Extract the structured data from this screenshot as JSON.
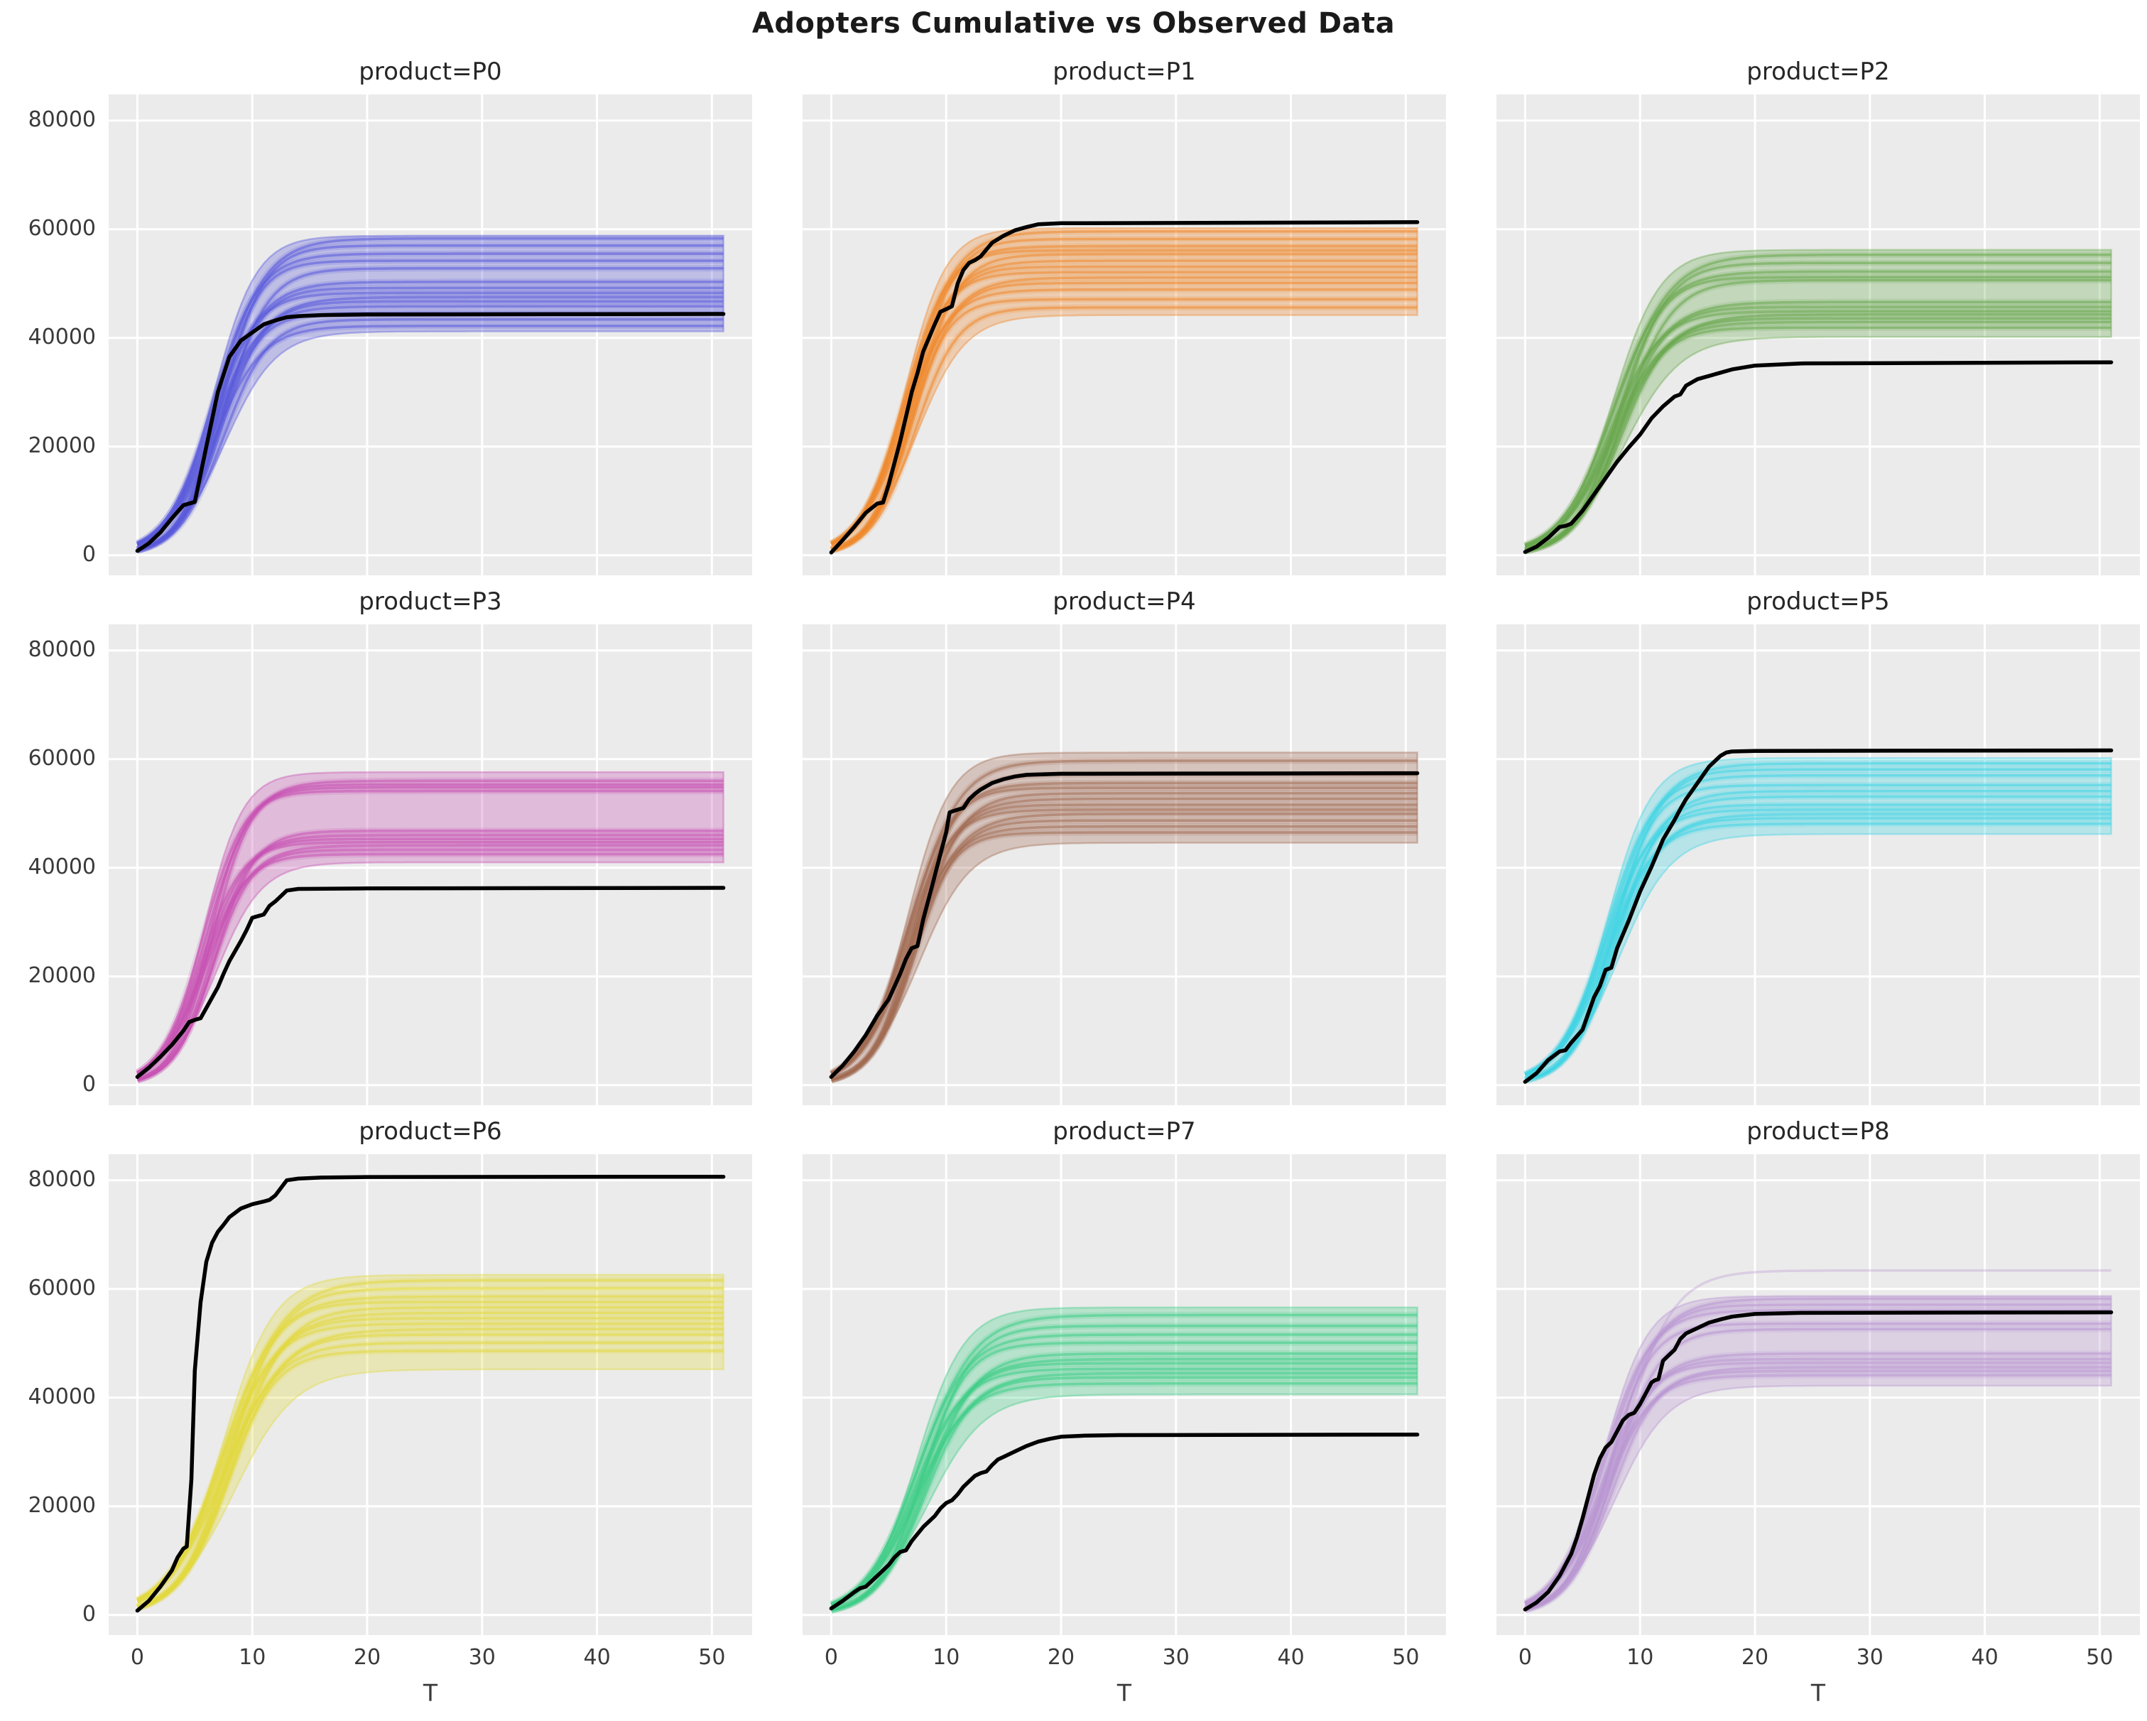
{
  "title": "Adopters Cumulative vs Observed Data",
  "style": {
    "panel_bg": "#ebebeb",
    "grid_color": "#ffffff",
    "observed_color": "#000000",
    "text_color": "#3a3a3a"
  },
  "chart_data": {
    "type": "line",
    "title": "Adopters Cumulative vs Observed Data",
    "xlabel": "T",
    "ylabel": "",
    "grid": true,
    "legend": false,
    "x_ticks": [
      0,
      10,
      20,
      30,
      40,
      50
    ],
    "y_ticks": [
      0,
      20000,
      40000,
      60000,
      80000
    ],
    "xlim": [
      -2.5,
      53.5
    ],
    "ylim": [
      -3700,
      84800
    ],
    "facets": [
      {
        "product": "P0",
        "title": "product=P0",
        "color": "#5a5adb",
        "band": {
          "lo": 41200,
          "hi": 58800,
          "k": 0.5,
          "t0": 7.0
        },
        "sample_levels": [
          58300,
          57000,
          55500,
          54200,
          52800,
          50300,
          49200,
          48300,
          47500,
          46700,
          45800,
          44600,
          43400,
          42200
        ],
        "outlier_levels": [],
        "observed": [
          [
            0,
            800
          ],
          [
            1,
            2200
          ],
          [
            2,
            4200
          ],
          [
            3,
            6800
          ],
          [
            4,
            9200
          ],
          [
            5,
            9800
          ],
          [
            6,
            20000
          ],
          [
            7,
            30000
          ],
          [
            8,
            36500
          ],
          [
            9,
            39500
          ],
          [
            10,
            41000
          ],
          [
            11,
            42500
          ],
          [
            12,
            43200
          ],
          [
            13,
            43800
          ],
          [
            14,
            44000
          ],
          [
            16,
            44200
          ],
          [
            20,
            44300
          ],
          [
            51,
            44400
          ]
        ]
      },
      {
        "product": "P1",
        "title": "product=P1",
        "color": "#f0882e",
        "band": {
          "lo": 44200,
          "hi": 60200,
          "k": 0.52,
          "t0": 6.8
        },
        "sample_levels": [
          59600,
          58200,
          56900,
          56100,
          55400,
          54200,
          53100,
          52100,
          51100,
          50100,
          48900,
          47100,
          45600
        ],
        "outlier_levels": [],
        "observed": [
          [
            0,
            500
          ],
          [
            1,
            2800
          ],
          [
            2,
            5200
          ],
          [
            3,
            7800
          ],
          [
            4,
            9500
          ],
          [
            4.5,
            9700
          ],
          [
            5,
            13000
          ],
          [
            6,
            21000
          ],
          [
            7,
            30000
          ],
          [
            7.5,
            33500
          ],
          [
            8,
            37500
          ],
          [
            9,
            42500
          ],
          [
            9.5,
            44800
          ],
          [
            10,
            45300
          ],
          [
            10.5,
            45800
          ],
          [
            11,
            50000
          ],
          [
            11.5,
            52500
          ],
          [
            12,
            53800
          ],
          [
            12.5,
            54300
          ],
          [
            13,
            55000
          ],
          [
            14,
            57500
          ],
          [
            15,
            58800
          ],
          [
            16,
            59800
          ],
          [
            17,
            60400
          ],
          [
            18,
            60900
          ],
          [
            20,
            61100
          ],
          [
            51,
            61300
          ]
        ]
      },
      {
        "product": "P2",
        "title": "product=P2",
        "color": "#67a84c",
        "band": {
          "lo": 40200,
          "hi": 56200,
          "k": 0.45,
          "t0": 8.0
        },
        "sample_levels": [
          55300,
          53800,
          52200,
          51200,
          50600,
          46600,
          45700,
          44900,
          44300,
          43600,
          42900,
          41900
        ],
        "outlier_levels": [],
        "observed": [
          [
            0,
            600
          ],
          [
            1,
            1600
          ],
          [
            2,
            3200
          ],
          [
            3,
            5200
          ],
          [
            3.5,
            5400
          ],
          [
            4,
            5800
          ],
          [
            5,
            8200
          ],
          [
            6,
            11200
          ],
          [
            7,
            14200
          ],
          [
            8,
            17200
          ],
          [
            9,
            19800
          ],
          [
            10,
            22200
          ],
          [
            11,
            25200
          ],
          [
            12,
            27400
          ],
          [
            13,
            29200
          ],
          [
            13.5,
            29600
          ],
          [
            14,
            31200
          ],
          [
            15,
            32400
          ],
          [
            16,
            33000
          ],
          [
            17,
            33600
          ],
          [
            18,
            34200
          ],
          [
            20,
            34900
          ],
          [
            24,
            35300
          ],
          [
            51,
            35500
          ]
        ]
      },
      {
        "product": "P3",
        "title": "product=P3",
        "color": "#c750b2",
        "band": {
          "lo": 41000,
          "hi": 57600,
          "k": 0.55,
          "t0": 6.2
        },
        "sample_levels": [
          56000,
          55300,
          54800,
          54100,
          46800,
          46000,
          45300,
          44700,
          44100,
          43300,
          42500
        ],
        "outlier_levels": [],
        "observed": [
          [
            0,
            1500
          ],
          [
            1,
            3200
          ],
          [
            2,
            5200
          ],
          [
            3,
            7400
          ],
          [
            4,
            10000
          ],
          [
            4.5,
            11600
          ],
          [
            5,
            12000
          ],
          [
            5.5,
            12300
          ],
          [
            6,
            14200
          ],
          [
            7,
            18000
          ],
          [
            7.5,
            20500
          ],
          [
            8,
            22800
          ],
          [
            9,
            26500
          ],
          [
            9.5,
            28500
          ],
          [
            10,
            30800
          ],
          [
            10.5,
            31100
          ],
          [
            11,
            31400
          ],
          [
            11.5,
            33000
          ],
          [
            12,
            33800
          ],
          [
            12.5,
            34800
          ],
          [
            13,
            35800
          ],
          [
            14,
            36100
          ],
          [
            20,
            36200
          ],
          [
            51,
            36300
          ]
        ]
      },
      {
        "product": "P4",
        "title": "product=P4",
        "color": "#a26b52",
        "band": {
          "lo": 44600,
          "hi": 61200,
          "k": 0.5,
          "t0": 7.0
        },
        "sample_levels": [
          59700,
          57200,
          55600,
          54700,
          53700,
          52700,
          51600,
          50700,
          49900,
          48700,
          47600,
          46500
        ],
        "outlier_levels": [],
        "observed": [
          [
            0,
            1500
          ],
          [
            1,
            3600
          ],
          [
            2,
            6200
          ],
          [
            3,
            9200
          ],
          [
            4,
            12800
          ],
          [
            5,
            15800
          ],
          [
            6,
            20500
          ],
          [
            6.5,
            23200
          ],
          [
            7,
            25200
          ],
          [
            7.5,
            25600
          ],
          [
            8,
            30500
          ],
          [
            8.5,
            34500
          ],
          [
            9,
            38500
          ],
          [
            9.5,
            42500
          ],
          [
            10,
            46500
          ],
          [
            10.3,
            50200
          ],
          [
            11,
            50700
          ],
          [
            11.5,
            51000
          ],
          [
            12,
            52600
          ],
          [
            12.5,
            53600
          ],
          [
            13,
            54400
          ],
          [
            14,
            55600
          ],
          [
            15,
            56300
          ],
          [
            16,
            56800
          ],
          [
            17,
            57100
          ],
          [
            20,
            57300
          ],
          [
            51,
            57400
          ]
        ]
      },
      {
        "product": "P5",
        "title": "product=P5",
        "color": "#40d5e3",
        "band": {
          "lo": 46200,
          "hi": 60200,
          "k": 0.48,
          "t0": 7.5
        },
        "sample_levels": [
          59200,
          58100,
          57000,
          55200,
          54100,
          53100,
          51600,
          50700,
          49900,
          49100,
          48100
        ],
        "outlier_levels": [],
        "observed": [
          [
            0,
            600
          ],
          [
            1,
            2200
          ],
          [
            2,
            4600
          ],
          [
            3,
            6200
          ],
          [
            3.5,
            6400
          ],
          [
            4,
            7800
          ],
          [
            5,
            10200
          ],
          [
            5.5,
            13200
          ],
          [
            6,
            16200
          ],
          [
            6.5,
            18200
          ],
          [
            7,
            21200
          ],
          [
            7.5,
            21600
          ],
          [
            8,
            25200
          ],
          [
            9,
            30200
          ],
          [
            10,
            35600
          ],
          [
            11,
            40200
          ],
          [
            12,
            45200
          ],
          [
            13,
            48800
          ],
          [
            13.5,
            50800
          ],
          [
            14,
            52600
          ],
          [
            15,
            55600
          ],
          [
            16,
            58600
          ],
          [
            17,
            60600
          ],
          [
            17.5,
            61200
          ],
          [
            18,
            61400
          ],
          [
            20,
            61500
          ],
          [
            51,
            61600
          ]
        ]
      },
      {
        "product": "P6",
        "title": "product=P6",
        "color": "#e1d93e",
        "band": {
          "lo": 45200,
          "hi": 62600,
          "k": 0.42,
          "t0": 7.8
        },
        "sample_levels": [
          61600,
          60100,
          58600,
          57600,
          56600,
          55600,
          54600,
          53600,
          52600,
          51600,
          50100,
          48600
        ],
        "outlier_levels": [],
        "observed": [
          [
            0,
            800
          ],
          [
            1,
            2600
          ],
          [
            2,
            5200
          ],
          [
            3,
            8200
          ],
          [
            3.5,
            10600
          ],
          [
            4,
            12200
          ],
          [
            4.3,
            12600
          ],
          [
            4.7,
            25000
          ],
          [
            5,
            45000
          ],
          [
            5.5,
            57500
          ],
          [
            6,
            65000
          ],
          [
            6.5,
            68500
          ],
          [
            7,
            70500
          ],
          [
            7.5,
            71800
          ],
          [
            8,
            73200
          ],
          [
            9,
            74800
          ],
          [
            10,
            75600
          ],
          [
            11,
            76100
          ],
          [
            11.5,
            76400
          ],
          [
            12,
            77200
          ],
          [
            12.5,
            78600
          ],
          [
            13,
            80000
          ],
          [
            14,
            80300
          ],
          [
            16,
            80500
          ],
          [
            20,
            80600
          ],
          [
            51,
            80650
          ]
        ]
      },
      {
        "product": "P7",
        "title": "product=P7",
        "color": "#3ece86",
        "band": {
          "lo": 40600,
          "hi": 56600,
          "k": 0.45,
          "t0": 7.8
        },
        "sample_levels": [
          55200,
          53200,
          51600,
          50100,
          48100,
          47100,
          46300,
          45300,
          44500,
          43700,
          42600
        ],
        "outlier_levels": [],
        "observed": [
          [
            0,
            1200
          ],
          [
            1,
            2600
          ],
          [
            2,
            4200
          ],
          [
            2.5,
            4900
          ],
          [
            3,
            5200
          ],
          [
            4,
            7200
          ],
          [
            5,
            9200
          ],
          [
            5.5,
            10600
          ],
          [
            6,
            11600
          ],
          [
            6.5,
            11900
          ],
          [
            7,
            13600
          ],
          [
            8,
            16200
          ],
          [
            9,
            18200
          ],
          [
            9.5,
            19600
          ],
          [
            10,
            20600
          ],
          [
            10.5,
            21100
          ],
          [
            11,
            22200
          ],
          [
            11.5,
            23600
          ],
          [
            12,
            24600
          ],
          [
            12.5,
            25600
          ],
          [
            13,
            26100
          ],
          [
            13.5,
            26400
          ],
          [
            14,
            27600
          ],
          [
            14.5,
            28600
          ],
          [
            15,
            29100
          ],
          [
            16,
            30100
          ],
          [
            17,
            31100
          ],
          [
            18,
            31900
          ],
          [
            19,
            32400
          ],
          [
            20,
            32800
          ],
          [
            22,
            33000
          ],
          [
            25,
            33100
          ],
          [
            51,
            33200
          ]
        ]
      },
      {
        "product": "P8",
        "title": "product=P8",
        "color": "#b995d2",
        "band": {
          "lo": 42200,
          "hi": 58700,
          "k": 0.48,
          "t0": 7.2
        },
        "sample_levels": [
          58200,
          57100,
          56100,
          53600,
          52600,
          48100,
          47100,
          46400,
          45600,
          44900,
          44100
        ],
        "outlier_levels": [
          63400
        ],
        "observed": [
          [
            0,
            1000
          ],
          [
            1,
            2300
          ],
          [
            2,
            4200
          ],
          [
            3,
            7200
          ],
          [
            4,
            11200
          ],
          [
            4.5,
            14200
          ],
          [
            5,
            17800
          ],
          [
            5.5,
            21800
          ],
          [
            6,
            25800
          ],
          [
            6.5,
            28800
          ],
          [
            7,
            30800
          ],
          [
            7.5,
            31800
          ],
          [
            8,
            33800
          ],
          [
            8.5,
            35800
          ],
          [
            9,
            36800
          ],
          [
            9.5,
            37200
          ],
          [
            10,
            38800
          ],
          [
            10.5,
            40800
          ],
          [
            11,
            42800
          ],
          [
            11.3,
            43200
          ],
          [
            11.6,
            43400
          ],
          [
            12,
            46800
          ],
          [
            12.5,
            47800
          ],
          [
            13,
            48800
          ],
          [
            13.5,
            50800
          ],
          [
            14,
            51800
          ],
          [
            15,
            52800
          ],
          [
            16,
            53800
          ],
          [
            17,
            54400
          ],
          [
            18,
            54900
          ],
          [
            20,
            55400
          ],
          [
            24,
            55600
          ],
          [
            51,
            55700
          ]
        ]
      }
    ]
  }
}
